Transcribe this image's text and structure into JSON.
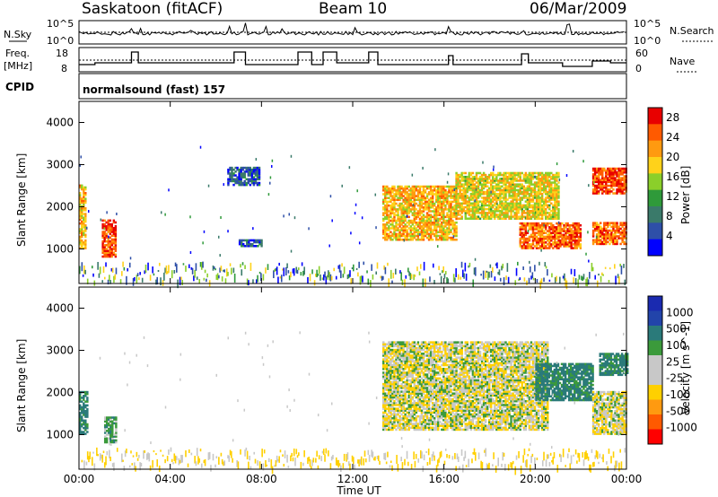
{
  "header": {
    "station": "Saskatoon (fitACF)",
    "beam": "Beam 10",
    "date": "06/Mar/2009"
  },
  "panels": {
    "nsky": {
      "label": "N.Sky",
      "ticks": [
        "10^5",
        "10^0"
      ],
      "right_label": "N.Search",
      "right_ticks": [
        "10^5",
        "10^0"
      ]
    },
    "freq": {
      "label": "Freq.",
      "unit": "[MHz]",
      "ticks": [
        "18",
        "8"
      ],
      "right_label": "Nave",
      "right_ticks": [
        "60",
        "0"
      ]
    },
    "cpid": {
      "label": "CPID",
      "value": "normalsound (fast) 157"
    }
  },
  "colors": {
    "power": [
      "#0000ff",
      "#2e4fa8",
      "#3a7a6a",
      "#2f9a3a",
      "#8bcf2a",
      "#ffd21a",
      "#ff9a10",
      "#ff5a00",
      "#e80000"
    ],
    "velocity": [
      "#ff0000",
      "#ff5a00",
      "#ff9a10",
      "#ffd000",
      "#c8c8c8",
      "#c8c8c8",
      "#3b9a3b",
      "#2a7a7a",
      "#2244aa",
      "#1a2ab0"
    ]
  },
  "chart_data": [
    {
      "type": "heatmap",
      "panel": "power",
      "ylabel": "Slant Range [km]",
      "yticks": [
        "1000",
        "2000",
        "3000",
        "4000"
      ],
      "ylim": [
        180,
        4500
      ],
      "xlim": [
        0,
        24
      ],
      "colorbar": {
        "label": "Power [dB]",
        "ticks": [
          "4",
          "8",
          "12",
          "16",
          "20",
          "24",
          "28"
        ],
        "range": [
          0,
          30
        ]
      },
      "regions": [
        {
          "t": [
            0.0,
            0.3
          ],
          "r": [
            1000,
            2500
          ],
          "value": 20
        },
        {
          "t": [
            1.0,
            1.6
          ],
          "r": [
            800,
            1700
          ],
          "value": 26
        },
        {
          "t": [
            6.5,
            7.9
          ],
          "r": [
            2500,
            2950
          ],
          "value": 6
        },
        {
          "t": [
            7.0,
            8.0
          ],
          "r": [
            1050,
            1200
          ],
          "value": 6
        },
        {
          "t": [
            13.3,
            16.5
          ],
          "r": [
            1200,
            2500
          ],
          "value": 20
        },
        {
          "t": [
            16.5,
            21.0
          ],
          "r": [
            1700,
            2800
          ],
          "value": 18
        },
        {
          "t": [
            19.3,
            22.0
          ],
          "r": [
            1000,
            1600
          ],
          "value": 24
        },
        {
          "t": [
            22.5,
            24.0
          ],
          "r": [
            2300,
            2900
          ],
          "value": 26
        },
        {
          "t": [
            22.5,
            24.0
          ],
          "r": [
            1100,
            1600
          ],
          "value": 24
        }
      ]
    },
    {
      "type": "heatmap",
      "panel": "velocity",
      "ylabel": "Slant Range [km]",
      "yticks": [
        "1000",
        "2000",
        "3000",
        "4000"
      ],
      "ylim": [
        180,
        4500
      ],
      "xlim": [
        0,
        24
      ],
      "colorbar": {
        "label": "Velocity [m s^-1]",
        "ticks": [
          "1000",
          "500",
          "100",
          "25",
          "-25",
          "-100",
          "-500",
          "-1000"
        ]
      },
      "regions": [
        {
          "t": [
            0.0,
            0.4
          ],
          "r": [
            1000,
            2000
          ],
          "value": 200
        },
        {
          "t": [
            1.1,
            1.6
          ],
          "r": [
            800,
            1400
          ],
          "value": 100
        },
        {
          "t": [
            13.3,
            20.5
          ],
          "r": [
            1100,
            3200
          ],
          "value": 0
        },
        {
          "t": [
            20.0,
            22.5
          ],
          "r": [
            1800,
            2700
          ],
          "value": 200
        },
        {
          "t": [
            22.5,
            24.0
          ],
          "r": [
            1000,
            2000
          ],
          "value": 0
        },
        {
          "t": [
            22.8,
            24.0
          ],
          "r": [
            2400,
            2900
          ],
          "value": 200
        }
      ]
    }
  ],
  "xaxis": {
    "ticks": [
      "00:00",
      "04:00",
      "08:00",
      "12:00",
      "16:00",
      "20:00",
      "00:00"
    ],
    "label": "Time UT"
  }
}
